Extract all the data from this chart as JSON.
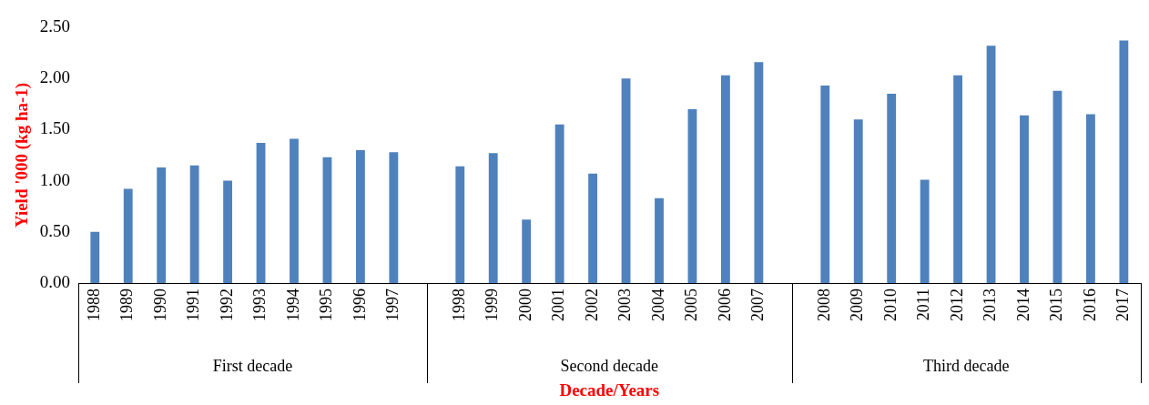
{
  "chart_data": {
    "type": "bar",
    "ylabel": "Yield '000 (kg ha-1)",
    "xlabel": "Decade/Years",
    "categories": [
      "1988",
      "1989",
      "1990",
      "1991",
      "1992",
      "1993",
      "1994",
      "1995",
      "1996",
      "1997",
      null,
      "1998",
      "1999",
      "2000",
      "2001",
      "2002",
      "2003",
      "2004",
      "2005",
      "2006",
      "2007",
      null,
      "2008",
      "2009",
      "2010",
      "2011",
      "2012",
      "2013",
      "2014",
      "2015",
      "2016",
      "2017"
    ],
    "values": [
      0.5,
      0.92,
      1.13,
      1.15,
      1.0,
      1.37,
      1.41,
      1.23,
      1.3,
      1.28,
      null,
      1.14,
      1.27,
      0.62,
      1.55,
      1.07,
      2.0,
      0.83,
      1.7,
      2.03,
      2.16,
      null,
      1.93,
      1.6,
      1.85,
      1.01,
      2.03,
      2.32,
      1.64,
      1.88,
      1.65,
      2.37
    ],
    "color": "#4f81bd",
    "ylim": [
      0,
      2.5
    ],
    "yticks": [
      {
        "value": 0,
        "label": "0.00"
      },
      {
        "value": 0.5,
        "label": "0.50"
      },
      {
        "value": 1,
        "label": "1.00"
      },
      {
        "value": 1.5,
        "label": "1.50"
      },
      {
        "value": 2,
        "label": "2.00"
      },
      {
        "value": 2.5,
        "label": "2.50"
      }
    ],
    "annotations": [
      "First decade",
      "Second decade",
      "Third decade"
    ],
    "grid": false,
    "legend": false
  }
}
